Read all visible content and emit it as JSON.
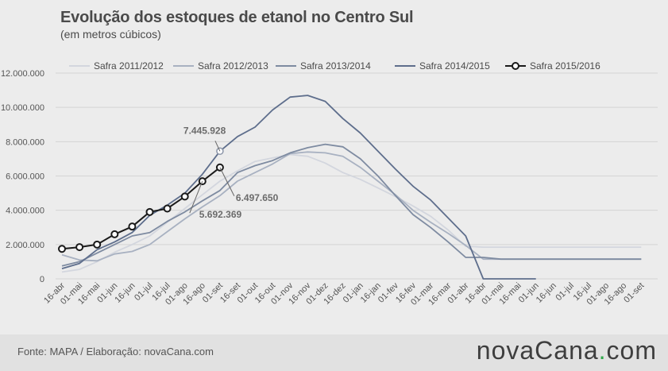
{
  "header": {
    "title": "Evolução dos estoques de etanol no Centro Sul",
    "subtitle": "(em metros cúbicos)"
  },
  "footer": {
    "source": "Fonte: MAPA / Elaboração: novaCana.com",
    "brand_main": "novaCana",
    "brand_dot": ".",
    "brand_tld": "com"
  },
  "chart_data": {
    "type": "line",
    "categories": [
      "16-abr",
      "01-mai",
      "16-mai",
      "01-jun",
      "16-jun",
      "01-jul",
      "16-jul",
      "01-ago",
      "16-ago",
      "01-set",
      "16-set",
      "01-out",
      "16-out",
      "01-nov",
      "16-nov",
      "01-dez",
      "16-dez",
      "01-jan",
      "16-jan",
      "01-fev",
      "16-fev",
      "01-mar",
      "16-mar",
      "01-abr",
      "16-abr",
      "01-mai",
      "16-mai",
      "01-jun",
      "16-jun",
      "01-jul",
      "16-jul",
      "01-ago",
      "16-ago",
      "01-set"
    ],
    "ylim": [
      0,
      12000000
    ],
    "yticks": [
      0,
      2000000,
      4000000,
      6000000,
      8000000,
      10000000,
      12000000
    ],
    "ytick_labels": [
      "0",
      "2.000.000",
      "4.000.000",
      "6.000.000",
      "8.000.000",
      "10.000.000",
      "12.000.000"
    ],
    "grid": "horizontal",
    "legend_position": "top",
    "series": [
      {
        "name": "Safra 2011/2012",
        "color": "#d3d6de",
        "marker": false,
        "values": [
          400000,
          550000,
          1000000,
          1550000,
          2000000,
          2500000,
          3300000,
          4100000,
          4900000,
          5700000,
          6300000,
          6850000,
          7050000,
          7250000,
          7150000,
          6750000,
          6200000,
          5800000,
          5300000,
          4800000,
          4250000,
          3650000,
          2850000,
          1900000,
          1850000,
          1850000,
          1850000,
          1850000,
          1850000,
          1850000,
          1850000,
          1850000,
          1850000,
          1850000
        ]
      },
      {
        "name": "Safra 2012/2013",
        "color": "#a8b1c1",
        "marker": false,
        "values": [
          1400000,
          1100000,
          1050000,
          1450000,
          1600000,
          2000000,
          2750000,
          3500000,
          4200000,
          4850000,
          5700000,
          6200000,
          6700000,
          7300000,
          7400000,
          7350000,
          7150000,
          6500000,
          5700000,
          4900000,
          4000000,
          3300000,
          2650000,
          1950000,
          1150000,
          1150000,
          1150000,
          1150000,
          1150000,
          1150000,
          1150000,
          1150000,
          1150000,
          1150000
        ]
      },
      {
        "name": "Safra 2013/2014",
        "color": "#7e8ba1",
        "marker": false,
        "values": [
          750000,
          1000000,
          1500000,
          2000000,
          2500000,
          2700000,
          3350000,
          3900000,
          4550000,
          5150000,
          6200000,
          6600000,
          6900000,
          7350000,
          7650000,
          7850000,
          7700000,
          7000000,
          6000000,
          4850000,
          3750000,
          3000000,
          2150000,
          1250000,
          1250000,
          1150000,
          1150000,
          1150000,
          1150000,
          1150000,
          1150000,
          1150000,
          1150000,
          1150000
        ]
      },
      {
        "name": "Safra 2014/2015",
        "color": "#5e6e8c",
        "marker": false,
        "values": [
          600000,
          900000,
          1700000,
          2150000,
          2700000,
          3700000,
          4300000,
          5000000,
          6100000,
          7445928,
          8300000,
          8850000,
          9850000,
          10600000,
          10700000,
          10350000,
          9350000,
          8500000,
          7450000,
          6400000,
          5400000,
          4600000,
          3550000,
          2500000,
          0,
          0,
          0,
          0,
          null,
          null,
          null,
          null,
          null,
          null
        ]
      },
      {
        "name": "Safra 2015/2016",
        "color": "#1a1a1a",
        "marker": true,
        "values": [
          1750000,
          1850000,
          2000000,
          2600000,
          3050000,
          3900000,
          4100000,
          4800000,
          5692369,
          6497650,
          null,
          null,
          null,
          null,
          null,
          null,
          null,
          null,
          null,
          null,
          null,
          null,
          null,
          null,
          null,
          null,
          null,
          null,
          null,
          null,
          null,
          null,
          null,
          null
        ]
      }
    ],
    "annotations": [
      {
        "label": "7.445.928",
        "series": "Safra 2014/2015",
        "index": 9
      },
      {
        "label": "6.497.650",
        "series": "Safra 2015/2016",
        "index": 9
      },
      {
        "label": "5.692.369",
        "series": "Safra 2015/2016",
        "index": 8
      }
    ]
  }
}
